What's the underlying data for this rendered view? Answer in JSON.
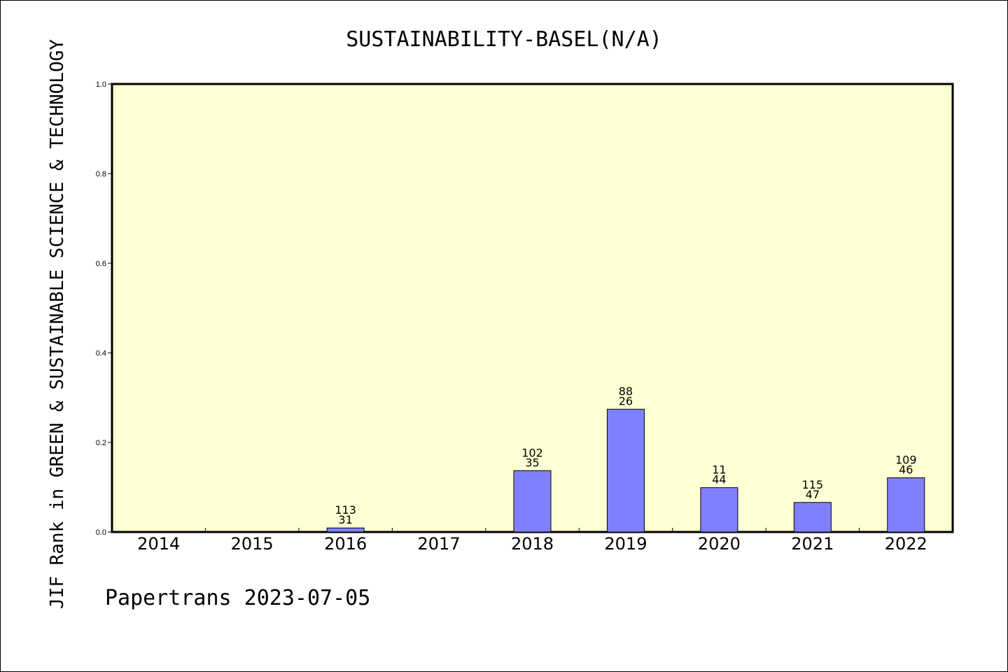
{
  "chart_data": {
    "type": "bar",
    "title": "SUSTAINABILITY-BASEL(N/A)",
    "ylabel": "JIF Rank in GREEN & SUSTAINABLE SCIENCE & TECHNOLOGY",
    "xlabel": "",
    "footer": "Papertrans 2023-07-05",
    "ylim": [
      0,
      1.0
    ],
    "yticks": [
      "0.0",
      "0.2",
      "0.4",
      "0.6",
      "0.8",
      "1.0"
    ],
    "categories": [
      "2014",
      "2015",
      "2016",
      "2017",
      "2018",
      "2019",
      "2020",
      "2021",
      "2022"
    ],
    "values": [
      null,
      null,
      0.009,
      null,
      0.137,
      0.274,
      0.099,
      0.066,
      0.121
    ],
    "labels": [
      null,
      null,
      {
        "total": "113",
        "rank": "31"
      },
      null,
      {
        "total": "102",
        "rank": "35"
      },
      {
        "total": "88",
        "rank": "26"
      },
      {
        "total": "11",
        "rank": "44"
      },
      {
        "total": "115",
        "rank": "47"
      },
      {
        "total": "109",
        "rank": "46"
      }
    ],
    "grid": false,
    "colors": {
      "plot_background": "#ffffd4",
      "bar_fill": "#8080ff",
      "bar_stroke": "#000000"
    }
  }
}
